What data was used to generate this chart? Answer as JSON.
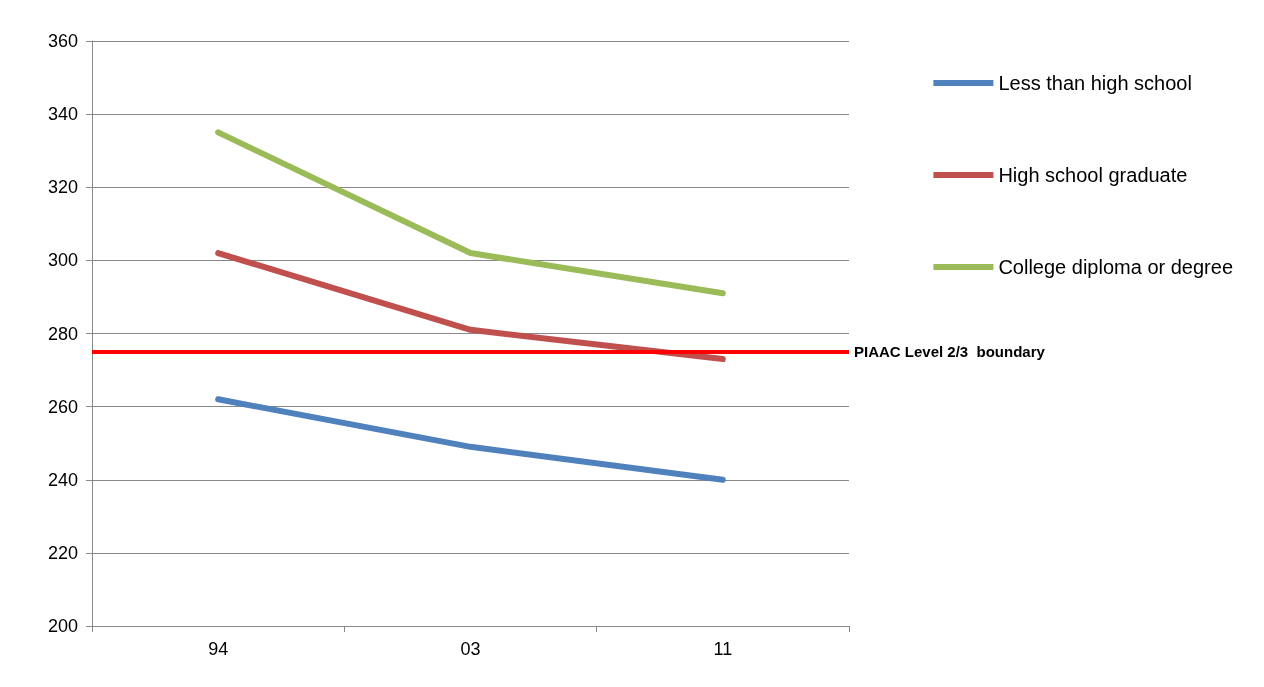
{
  "chart_data": {
    "type": "line",
    "categories": [
      "94",
      "03",
      "11"
    ],
    "series": [
      {
        "name": "Less than high school",
        "color": "#4f81bd",
        "values": [
          262,
          249,
          240
        ]
      },
      {
        "name": "High school graduate",
        "color": "#c0504d",
        "values": [
          302,
          281,
          273
        ]
      },
      {
        "name": "College diploma or degree",
        "color": "#9bbb59",
        "values": [
          335,
          302,
          291
        ]
      }
    ],
    "ylim": [
      200,
      360
    ],
    "yticks": [
      200,
      220,
      240,
      260,
      280,
      300,
      320,
      340,
      360
    ],
    "grid": "y",
    "legend": "right",
    "marker": "none",
    "line_style": "solid",
    "ref_lines": [
      {
        "axis": "y",
        "value": 275,
        "label": "PIAAC Level 2/3  boundary",
        "color": "#ff0000"
      }
    ]
  }
}
